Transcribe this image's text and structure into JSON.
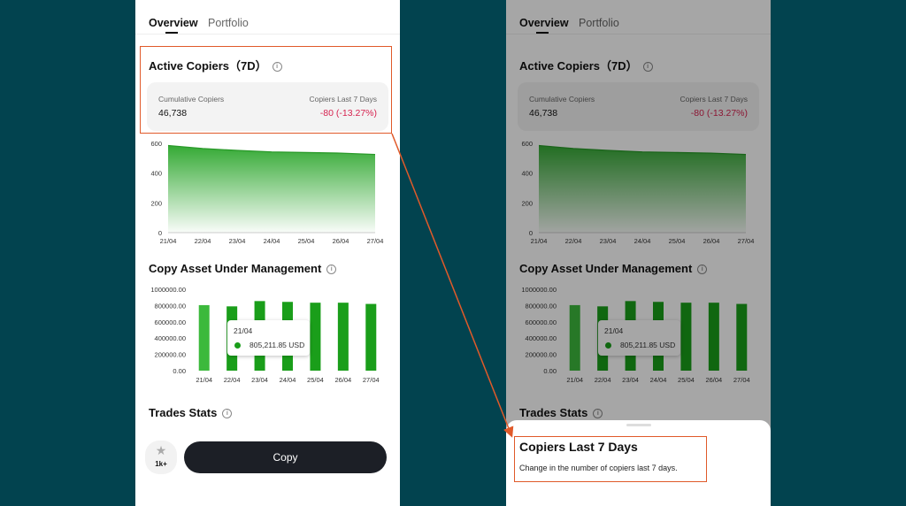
{
  "tabs": [
    {
      "label": "Overview"
    },
    {
      "label": "Portfolio"
    }
  ],
  "active_copiers": {
    "title": "Active Copiers（7D）",
    "cumulative_label": "Cumulative Copiers",
    "cumulative_value": "46,738",
    "last7_label": "Copiers Last 7 Days",
    "last7_value": "-80 (-13.27%)"
  },
  "copy_aum": {
    "title": "Copy Asset Under Management"
  },
  "tooltip": {
    "date": "21/04",
    "value": "805,211.85 USD"
  },
  "trades_stats": {
    "title": "Trades Stats"
  },
  "footer": {
    "copier_count": "1k+",
    "copy_label": "Copy"
  },
  "sheet": {
    "title": "Copiers Last 7 Days",
    "description": "Change in the number of copiers last 7 days."
  },
  "colors": {
    "accent_green": "#1a9e1a",
    "negative": "#d6224f",
    "dark_button": "#1c1f26",
    "annotation": "#e05a2a",
    "background": "#02434f"
  },
  "icons": {
    "info": "info-icon",
    "star": "star-icon"
  },
  "chart_data": [
    {
      "type": "area",
      "categories": [
        "21/04",
        "22/04",
        "23/04",
        "24/04",
        "25/04",
        "26/04",
        "27/04"
      ],
      "values": [
        585,
        565,
        552,
        542,
        538,
        534,
        525
      ],
      "ylim": [
        0,
        600
      ],
      "yticks": [
        "600",
        "400",
        "200",
        "0"
      ],
      "color": "#2aa52a"
    },
    {
      "type": "bar",
      "categories": [
        "21/04",
        "22/04",
        "23/04",
        "24/04",
        "25/04",
        "26/04",
        "27/04"
      ],
      "values": [
        805211.85,
        790000,
        855000,
        845000,
        835000,
        835000,
        820000
      ],
      "ylim": [
        0,
        1000000
      ],
      "yticks": [
        "1000000.00",
        "800000.00",
        "600000.00",
        "400000.00",
        "200000.00",
        "0.00"
      ],
      "color": "#1a9e1a"
    }
  ]
}
